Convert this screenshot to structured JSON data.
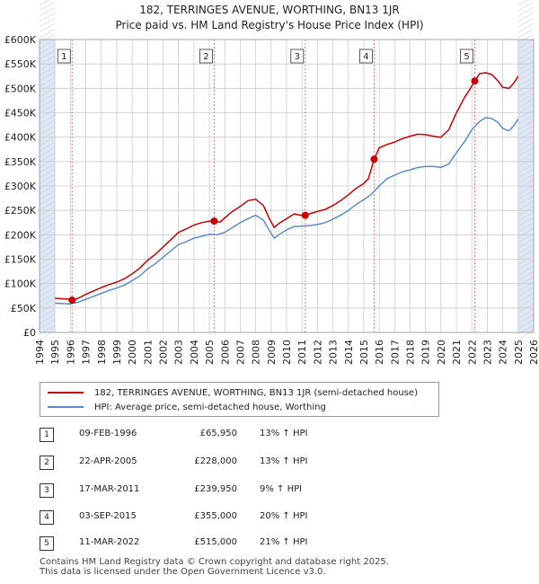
{
  "title": "182, TERRINGES AVENUE, WORTHING, BN13 1JR",
  "subtitle": "Price paid vs. HM Land Registry's House Price Index (HPI)",
  "colors": {
    "property": "#cc0000",
    "hpi": "#5b8cc8",
    "shade": "#dde6f3",
    "grid": "#cccccc",
    "marker_line": "#e08080"
  },
  "chart_data": {
    "type": "line",
    "xlim": [
      1994,
      2026
    ],
    "ylim": [
      0,
      600000
    ],
    "y_ticks": [
      0,
      50000,
      100000,
      150000,
      200000,
      250000,
      300000,
      350000,
      400000,
      450000,
      500000,
      550000,
      600000
    ],
    "y_tick_labels": [
      "£0",
      "£50K",
      "£100K",
      "£150K",
      "£200K",
      "£250K",
      "£300K",
      "£350K",
      "£400K",
      "£450K",
      "£500K",
      "£550K",
      "£600K"
    ],
    "x_ticks": [
      1994,
      1995,
      1996,
      1997,
      1998,
      1999,
      2000,
      2001,
      2002,
      2003,
      2004,
      2005,
      2006,
      2007,
      2008,
      2009,
      2010,
      2011,
      2012,
      2013,
      2014,
      2015,
      2016,
      2017,
      2018,
      2019,
      2020,
      2021,
      2022,
      2023,
      2024,
      2025,
      2026
    ],
    "shaded_before": 1995,
    "shaded_after": 2025,
    "series": [
      {
        "name": "182, TERRINGES AVENUE, WORTHING, BN13 1JR (semi-detached house)",
        "x": [
          1995.0,
          1995.5,
          1996.0,
          1996.11,
          1996.5,
          1997.0,
          1997.5,
          1998.0,
          1998.5,
          1999.0,
          1999.5,
          2000.0,
          2000.5,
          2001.0,
          2001.5,
          2002.0,
          2002.5,
          2003.0,
          2003.5,
          2004.0,
          2004.5,
          2005.0,
          2005.31,
          2005.7,
          2006.0,
          2006.5,
          2007.0,
          2007.5,
          2008.0,
          2008.5,
          2008.9,
          2009.2,
          2009.5,
          2010.0,
          2010.5,
          2010.9,
          2011.21,
          2011.6,
          2012.0,
          2012.5,
          2013.0,
          2013.5,
          2014.0,
          2014.5,
          2015.0,
          2015.3,
          2015.67,
          2016.0,
          2016.5,
          2017.0,
          2017.5,
          2018.0,
          2018.5,
          2019.0,
          2019.5,
          2020.0,
          2020.5,
          2021.0,
          2021.5,
          2022.0,
          2022.19,
          2022.5,
          2022.9,
          2023.3,
          2023.7,
          2024.0,
          2024.4,
          2024.7,
          2025.0
        ],
        "values": [
          70000,
          69000,
          68000,
          65950,
          70000,
          78000,
          85000,
          92000,
          98000,
          103000,
          110000,
          120000,
          132000,
          148000,
          160000,
          175000,
          190000,
          205000,
          212000,
          220000,
          225000,
          228000,
          228000,
          226000,
          235000,
          248000,
          258000,
          270000,
          273000,
          260000,
          232000,
          215000,
          223000,
          233000,
          243000,
          240000,
          239950,
          244000,
          248000,
          252000,
          260000,
          270000,
          282000,
          295000,
          305000,
          315000,
          355000,
          378000,
          385000,
          390000,
          397000,
          402000,
          406000,
          405000,
          402000,
          400000,
          415000,
          450000,
          480000,
          505000,
          515000,
          530000,
          532000,
          528000,
          515000,
          502000,
          500000,
          510000,
          525000
        ]
      },
      {
        "name": "HPI: Average price, semi-detached house, Worthing",
        "x": [
          1995.0,
          1995.5,
          1996.0,
          1996.5,
          1997.0,
          1997.5,
          1998.0,
          1998.5,
          1999.0,
          1999.5,
          2000.0,
          2000.5,
          2001.0,
          2001.5,
          2002.0,
          2002.5,
          2003.0,
          2003.5,
          2004.0,
          2004.5,
          2005.0,
          2005.5,
          2006.0,
          2006.5,
          2007.0,
          2007.5,
          2008.0,
          2008.5,
          2008.9,
          2009.2,
          2009.5,
          2010.0,
          2010.5,
          2011.0,
          2011.5,
          2012.0,
          2012.5,
          2013.0,
          2013.5,
          2014.0,
          2014.5,
          2015.0,
          2015.5,
          2016.0,
          2016.5,
          2017.0,
          2017.5,
          2018.0,
          2018.5,
          2019.0,
          2019.5,
          2020.0,
          2020.5,
          2021.0,
          2021.5,
          2022.0,
          2022.5,
          2022.9,
          2023.3,
          2023.7,
          2024.0,
          2024.4,
          2024.7,
          2025.0
        ],
        "values": [
          60000,
          59000,
          58500,
          62000,
          68000,
          74000,
          80000,
          86000,
          91000,
          97000,
          106000,
          116000,
          130000,
          141000,
          154000,
          167000,
          180000,
          186000,
          193000,
          197000,
          201000,
          200000,
          205000,
          215000,
          225000,
          233000,
          240000,
          230000,
          208000,
          193000,
          200000,
          210000,
          217000,
          218000,
          219000,
          221000,
          225000,
          232000,
          240000,
          250000,
          262000,
          272000,
          283000,
          300000,
          315000,
          322000,
          329000,
          333000,
          338000,
          340000,
          340000,
          338000,
          345000,
          368000,
          390000,
          415000,
          432000,
          440000,
          438000,
          430000,
          418000,
          413000,
          423000,
          437000
        ]
      }
    ],
    "sales": [
      {
        "label": "1",
        "x": 1996.11,
        "y": 65950
      },
      {
        "label": "2",
        "x": 2005.31,
        "y": 228000
      },
      {
        "label": "3",
        "x": 2011.21,
        "y": 239950
      },
      {
        "label": "4",
        "x": 2015.67,
        "y": 355000
      },
      {
        "label": "5",
        "x": 2022.19,
        "y": 515000
      }
    ]
  },
  "legend": {
    "property_label": "182, TERRINGES AVENUE, WORTHING, BN13 1JR (semi-detached house)",
    "hpi_label": "HPI: Average price, semi-detached house, Worthing"
  },
  "sales_table": [
    {
      "num": "1",
      "date": "09-FEB-1996",
      "price": "£65,950",
      "hpi": "13% ↑ HPI"
    },
    {
      "num": "2",
      "date": "22-APR-2005",
      "price": "£228,000",
      "hpi": "13% ↑ HPI"
    },
    {
      "num": "3",
      "date": "17-MAR-2011",
      "price": "£239,950",
      "hpi": "9% ↑ HPI"
    },
    {
      "num": "4",
      "date": "03-SEP-2015",
      "price": "£355,000",
      "hpi": "20% ↑ HPI"
    },
    {
      "num": "5",
      "date": "11-MAR-2022",
      "price": "£515,000",
      "hpi": "21% ↑ HPI"
    }
  ],
  "footer": {
    "line1": "Contains HM Land Registry data © Crown copyright and database right 2025.",
    "line2": "This data is licensed under the Open Government Licence v3.0."
  }
}
